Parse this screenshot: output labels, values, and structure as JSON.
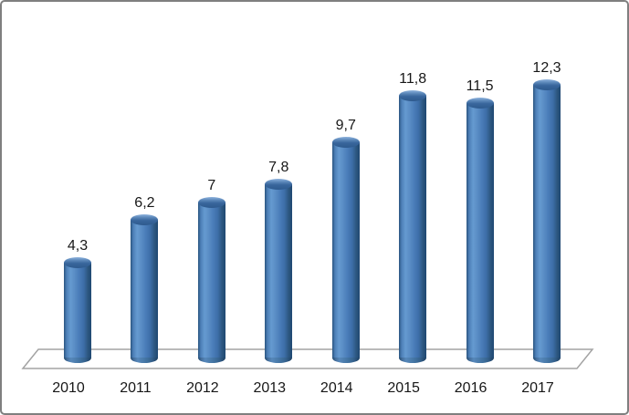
{
  "chart_data": {
    "type": "bar",
    "subtype": "3d-cylinder",
    "title": "",
    "xlabel": "",
    "ylabel": "",
    "categories": [
      "2010",
      "2011",
      "2012",
      "2013",
      "2014",
      "2015",
      "2016",
      "2017"
    ],
    "values": [
      4.3,
      6.2,
      7,
      7.8,
      9.7,
      11.8,
      11.5,
      12.3
    ],
    "value_labels": [
      "4,3",
      "6,2",
      "7",
      "7,8",
      "9,7",
      "11,8",
      "11,5",
      "12,3"
    ],
    "series_name": "",
    "decimal_separator": ",",
    "ylim": [
      0,
      13
    ],
    "grid": false,
    "value_axis_visible": false,
    "legend": "none",
    "data_labels_position": "above",
    "colors": {
      "bar_fill": "#4a7db9",
      "bar_edge_dark": "#1f4872",
      "bar_top_cap": "#2e5a8e",
      "bar_highlight": "#8fb3dd",
      "floor_stroke": "#a3a3a3",
      "label_text": "#171717",
      "frame_border": "#7f7f7f",
      "background": "#ffffff"
    }
  }
}
